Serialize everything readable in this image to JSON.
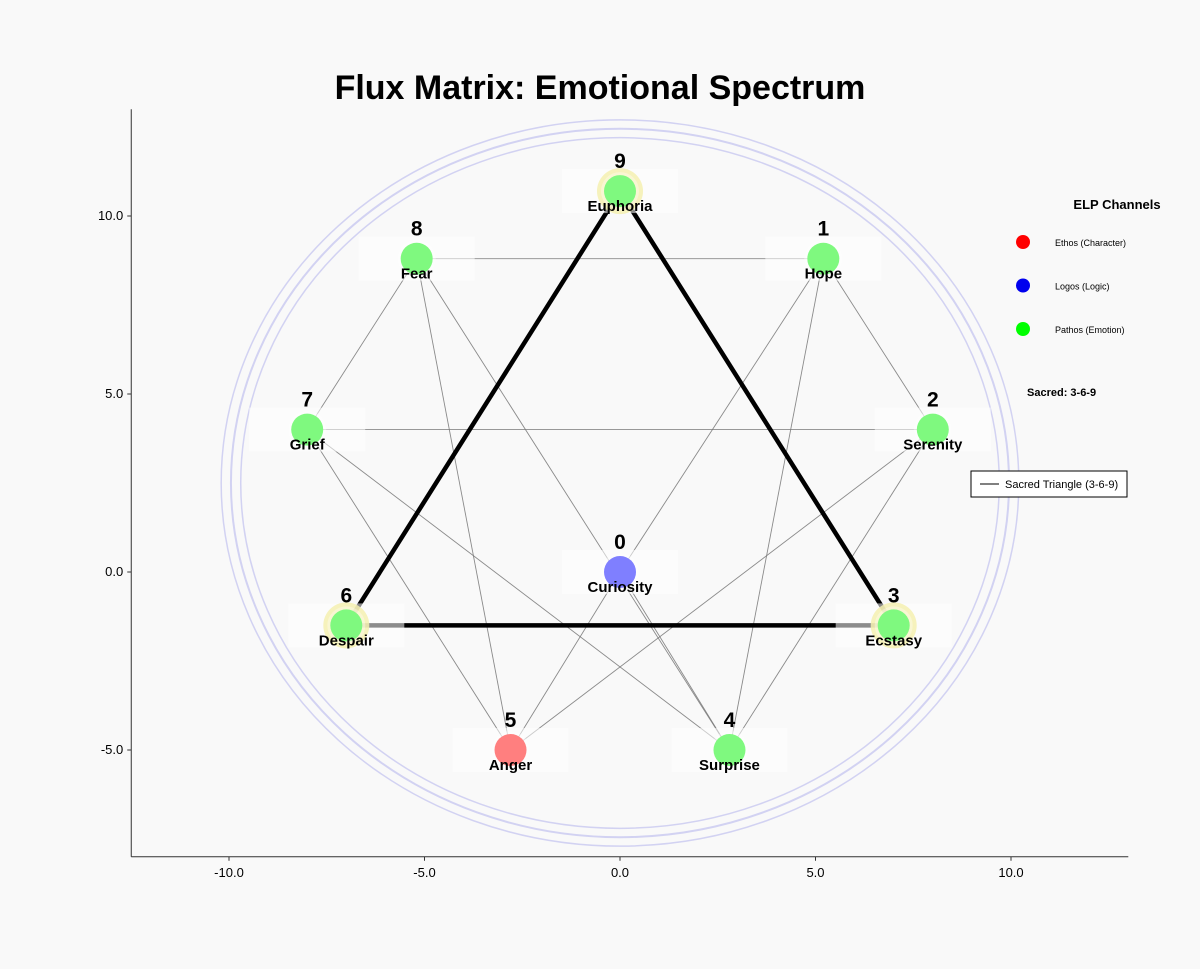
{
  "chart_data": {
    "type": "network",
    "title": "Flux Matrix: Emotional Spectrum",
    "xlim": [
      -12.5,
      13.0
    ],
    "ylim": [
      -8.0,
      13.0
    ],
    "x_ticks": [
      -10.0,
      -5.0,
      0.0,
      5.0,
      10.0
    ],
    "y_ticks": [
      -5.0,
      0.0,
      5.0,
      10.0
    ],
    "x_tick_labels": [
      "-10.0",
      "-5.0",
      "0.0",
      "5.0",
      "10.0"
    ],
    "y_tick_labels": [
      "-5.0",
      "0.0",
      "5.0",
      "10.0"
    ],
    "grid": false,
    "circle": {
      "center": [
        0,
        2.5
      ],
      "radii": [
        9.7,
        9.95,
        10.2
      ]
    },
    "nodes": [
      {
        "id": 0,
        "label": "Curiosity",
        "x": 0.0,
        "y": 0.0,
        "channel": "Logos"
      },
      {
        "id": 1,
        "label": "Hope",
        "x": 5.2,
        "y": 8.8,
        "channel": "Pathos"
      },
      {
        "id": 2,
        "label": "Serenity",
        "x": 8.0,
        "y": 4.0,
        "channel": "Pathos"
      },
      {
        "id": 3,
        "label": "Ecstasy",
        "x": 7.0,
        "y": -1.5,
        "channel": "Pathos",
        "sacred": true
      },
      {
        "id": 4,
        "label": "Surprise",
        "x": 2.8,
        "y": -5.0,
        "channel": "Pathos"
      },
      {
        "id": 5,
        "label": "Anger",
        "x": -2.8,
        "y": -5.0,
        "channel": "Ethos"
      },
      {
        "id": 6,
        "label": "Despair",
        "x": -7.0,
        "y": -1.5,
        "channel": "Pathos",
        "sacred": true
      },
      {
        "id": 7,
        "label": "Grief",
        "x": -8.0,
        "y": 4.0,
        "channel": "Pathos"
      },
      {
        "id": 8,
        "label": "Fear",
        "x": -5.2,
        "y": 8.8,
        "channel": "Pathos"
      },
      {
        "id": 9,
        "label": "Euphoria",
        "x": 0.0,
        "y": 10.7,
        "channel": "Pathos",
        "sacred": true
      }
    ],
    "edges": [
      [
        8,
        1
      ],
      [
        7,
        2
      ],
      [
        1,
        2
      ],
      [
        2,
        4
      ],
      [
        4,
        1
      ],
      [
        8,
        7
      ],
      [
        7,
        5
      ],
      [
        5,
        8
      ],
      [
        8,
        4
      ],
      [
        7,
        4
      ],
      [
        2,
        5
      ],
      [
        1,
        0
      ],
      [
        0,
        5
      ],
      [
        0,
        4
      ]
    ],
    "sacred_triangle": [
      3,
      6,
      9
    ],
    "legend": {
      "title": "ELP Channels",
      "items": [
        {
          "name": "Ethos (Character)",
          "color": "#ff0000"
        },
        {
          "name": "Logos (Logic)",
          "color": "#0000ee"
        },
        {
          "name": "Pathos (Emotion)",
          "color": "#00ff00"
        }
      ],
      "note": "Sacred: 3-6-9",
      "line_legend": "Sacred Triangle (3-6-9)",
      "position": "right"
    },
    "colors": {
      "Ethos": "#ff7f7f",
      "Logos": "#7f7fff",
      "Pathos": "#7ff97f",
      "sacred_glow": "#f5f0b0",
      "circle": "#c8c8f0",
      "edge": "#777777",
      "triangle": "#000000"
    }
  }
}
